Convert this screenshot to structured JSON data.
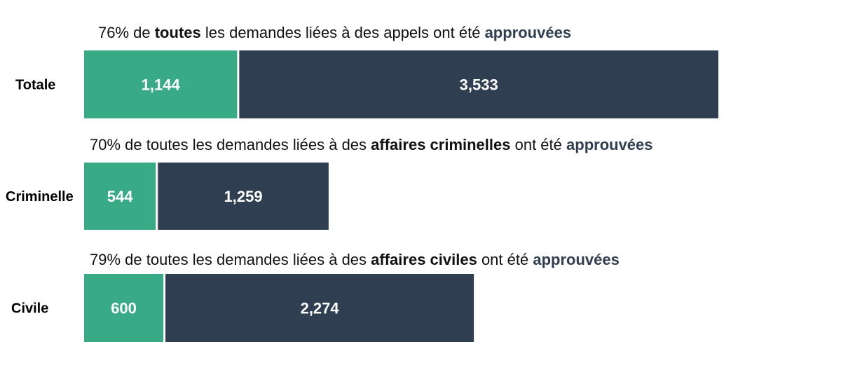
{
  "colors": {
    "approved": "#38ab86",
    "other": "#2f3e50",
    "highlight_text": "#2f3e50"
  },
  "chart_data": {
    "type": "bar",
    "orientation": "horizontal",
    "stacked": true,
    "categories": [
      "Totale",
      "Criminelle",
      "Civile"
    ],
    "series": [
      {
        "values": [
          1144,
          544,
          600
        ]
      },
      {
        "values": [
          3533,
          1259,
          2274
        ]
      }
    ],
    "value_labels": [
      [
        "1,144",
        "544",
        "600"
      ],
      [
        "3,533",
        "1,259",
        "2,274"
      ]
    ],
    "captions": [
      [
        {
          "text": "76% de ",
          "style": "normal"
        },
        {
          "text": "toutes",
          "style": "bold"
        },
        {
          "text": " les demandes liées à des appels ont été ",
          "style": "normal"
        },
        {
          "text": "approuvées",
          "style": "accent"
        }
      ],
      [
        {
          "text": "70% de toutes les demandes liées à des ",
          "style": "normal"
        },
        {
          "text": "affaires criminelles",
          "style": "bold"
        },
        {
          "text": " ont été ",
          "style": "normal"
        },
        {
          "text": "approuvées",
          "style": "accent"
        }
      ],
      [
        {
          "text": "79% de toutes les demandes liées à des ",
          "style": "normal"
        },
        {
          "text": "affaires civiles",
          "style": "bold"
        },
        {
          "text": " ont été ",
          "style": "normal"
        },
        {
          "text": "approuvées",
          "style": "accent"
        }
      ]
    ],
    "xlim": [
      0,
      4677
    ],
    "grid": false,
    "legend": "none"
  }
}
